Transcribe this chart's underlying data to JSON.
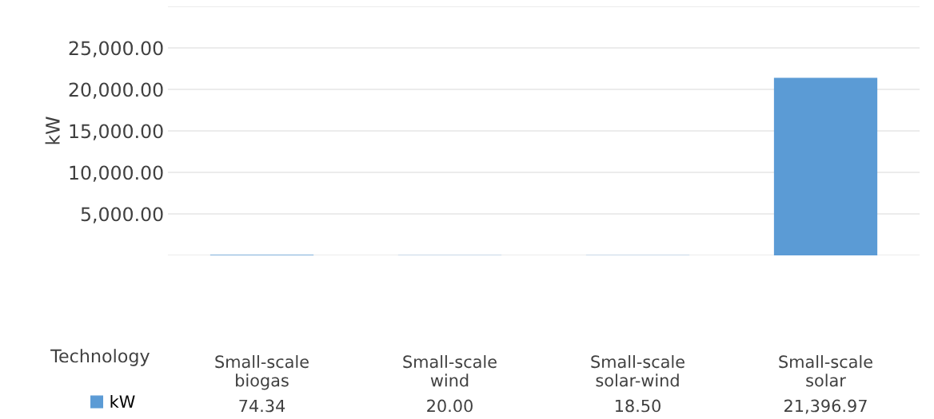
{
  "chart_data": {
    "type": "bar",
    "ylabel": "kW",
    "xlabel": "Technology",
    "categories": [
      "Small-scale\nbiogas",
      "Small-scale\nwind",
      "Small-scale\nsolar-wind",
      "Small-scale\nsolar"
    ],
    "series": [
      {
        "name": "kW",
        "color": "#5b9bd5",
        "values": [
          74.34,
          20.0,
          18.5,
          21396.97
        ],
        "value_labels": [
          "74.34",
          "20.00",
          "18.50",
          "21,396.97"
        ]
      }
    ],
    "ylim": [
      0,
      30000
    ],
    "yticks": [
      {
        "value": 0,
        "label": null
      },
      {
        "value": 5000,
        "label": "5,000.00"
      },
      {
        "value": 10000,
        "label": "10,000.00"
      },
      {
        "value": 15000,
        "label": "15,000.00"
      },
      {
        "value": 20000,
        "label": "20,000.00"
      },
      {
        "value": 25000,
        "label": "25,000.00"
      },
      {
        "value": 30000,
        "label": null
      }
    ],
    "grid": "y",
    "legend": "bottom left"
  }
}
